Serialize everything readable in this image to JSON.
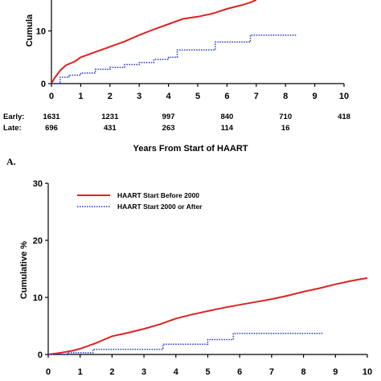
{
  "chart_data": [
    {
      "type": "line",
      "panel": "A",
      "panel_label": "A.",
      "ylabel": "Cumulative %",
      "ylabel_visible": "Cumula",
      "xlabel": "Years From Start of HAART",
      "xlim": [
        0,
        10
      ],
      "ylim": [
        0,
        20
      ],
      "x_ticks": [
        "0",
        "1",
        "2",
        "3",
        "4",
        "5",
        "6",
        "7",
        "8",
        "9",
        "10"
      ],
      "y_ticks": [
        "0",
        "10"
      ],
      "y_tick_values": [
        0,
        10
      ],
      "series": [
        {
          "key": "early",
          "color": "#dd2222",
          "style": "solid",
          "x": [
            0,
            0.1,
            0.3,
            0.5,
            0.8,
            1,
            1.5,
            2,
            2.5,
            3,
            3.5,
            4,
            4.5,
            5,
            5.5,
            6,
            6.5,
            6.8,
            7
          ],
          "y": [
            0,
            1,
            2.5,
            3.5,
            4.2,
            5,
            6,
            7,
            8,
            9.2,
            10.3,
            11.3,
            12.3,
            12.7,
            13.3,
            14.2,
            14.9,
            15.4,
            15.9
          ]
        },
        {
          "key": "late",
          "color": "#2233cc",
          "style": "dotted-step",
          "x": [
            0,
            0.3,
            0.6,
            1,
            1.5,
            2,
            2.5,
            3,
            3.5,
            4,
            4.3,
            5,
            5.5,
            5.6,
            6,
            6.5,
            6.8,
            7.3,
            8,
            8.4
          ],
          "y": [
            0,
            1.2,
            1.6,
            2,
            2.7,
            3.1,
            3.6,
            4,
            4.6,
            5,
            6.4,
            6.4,
            6.4,
            7.9,
            7.9,
            7.9,
            9.2,
            9.2,
            9.2,
            9.2
          ]
        }
      ],
      "risk_table": {
        "x": [
          0,
          2,
          4,
          6,
          8,
          10
        ],
        "rows": [
          {
            "label": "Early:",
            "values": [
              "1631",
              "1231",
              "997",
              "840",
              "710",
              "418"
            ]
          },
          {
            "label": "Late:",
            "values": [
              "696",
              "431",
              "263",
              "114",
              "16",
              ""
            ]
          }
        ]
      }
    },
    {
      "type": "line",
      "panel": "B",
      "ylabel": "Cumulative %",
      "xlim": [
        0,
        10
      ],
      "ylim": [
        0,
        30
      ],
      "x_ticks": [
        "0",
        "1",
        "2",
        "3",
        "4",
        "5",
        "6",
        "7",
        "8",
        "9",
        "10"
      ],
      "y_ticks": [
        "0",
        "10",
        "20",
        "30"
      ],
      "y_tick_values": [
        0,
        10,
        20,
        30
      ],
      "legend": {
        "placement": "top-left",
        "entries": [
          {
            "label": "HAART Start Before 2000",
            "color": "#dd2222",
            "style": "solid"
          },
          {
            "label": "HAART Start 2000 or After",
            "color": "#2233cc",
            "style": "dotted"
          }
        ]
      },
      "series": [
        {
          "key": "before-2000",
          "name": "HAART Start Before 2000",
          "color": "#dd2222",
          "style": "solid",
          "x": [
            0,
            0.4,
            0.8,
            1,
            1.5,
            2,
            2.5,
            3,
            3.5,
            4,
            4.5,
            5,
            5.5,
            6,
            6.5,
            7,
            7.5,
            8,
            8.5,
            9,
            9.5,
            10
          ],
          "y": [
            0,
            0.3,
            0.7,
            1,
            2,
            3.2,
            3.8,
            4.5,
            5.3,
            6.3,
            7,
            7.6,
            8.2,
            8.7,
            9.2,
            9.7,
            10.3,
            11,
            11.6,
            12.3,
            12.9,
            13.4
          ]
        },
        {
          "key": "2000-or-after",
          "name": "HAART Start 2000 or After",
          "color": "#2233cc",
          "style": "dotted-step",
          "x": [
            0,
            0.6,
            1,
            1.4,
            2,
            3,
            3.6,
            4,
            5,
            5.6,
            5.8,
            6,
            7,
            8,
            8.6
          ],
          "y": [
            0,
            0.3,
            0.3,
            0.9,
            0.9,
            0.9,
            1.8,
            1.8,
            2.6,
            2.6,
            3.7,
            3.7,
            3.7,
            3.7,
            3.7
          ]
        }
      ]
    }
  ]
}
